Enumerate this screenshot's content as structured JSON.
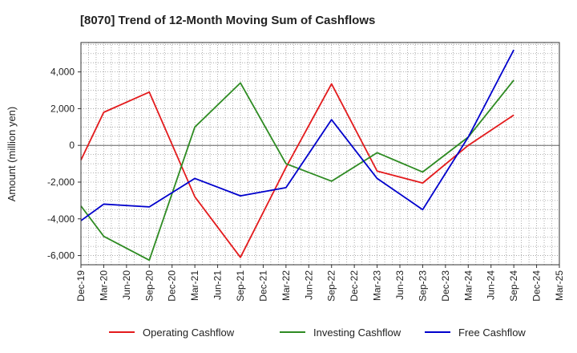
{
  "chart_data": {
    "type": "line",
    "title": "[8070]  Trend of 12-Month Moving Sum of Cashflows",
    "ylabel": "Amount (million yen)",
    "xlabel": "",
    "ylim": [
      -6500,
      5600
    ],
    "yticks": [
      -6000,
      -4000,
      -2000,
      0,
      2000,
      4000
    ],
    "ytick_labels": [
      "-6,000",
      "-4,000",
      "-2,000",
      "0",
      "2,000",
      "4,000"
    ],
    "categories": [
      "Dec-19",
      "Mar-20",
      "Jun-20",
      "Sep-20",
      "Dec-20",
      "Mar-21",
      "Jun-21",
      "Sep-21",
      "Dec-21",
      "Mar-22",
      "Jun-22",
      "Sep-22",
      "Dec-22",
      "Mar-23",
      "Jun-23",
      "Sep-23",
      "Dec-23",
      "Mar-24",
      "Jun-24",
      "Sep-24",
      "Dec-24",
      "Mar-25"
    ],
    "grid": true,
    "legend_position": "bottom",
    "series": [
      {
        "name": "Operating Cashflow",
        "color": "#e31a1c",
        "points": [
          [
            "Dec-19",
            -800
          ],
          [
            "Mar-20",
            1800
          ],
          [
            "Sep-20",
            2900
          ],
          [
            "Mar-21",
            -2800
          ],
          [
            "Sep-21",
            -6100
          ],
          [
            "Mar-22",
            -1200
          ],
          [
            "Sep-22",
            3350
          ],
          [
            "Mar-23",
            -1400
          ],
          [
            "Sep-23",
            -2050
          ],
          [
            "Mar-24",
            0
          ],
          [
            "Sep-24",
            1650
          ]
        ]
      },
      {
        "name": "Investing Cashflow",
        "color": "#2e8b22",
        "points": [
          [
            "Dec-19",
            -3300
          ],
          [
            "Mar-20",
            -4950
          ],
          [
            "Sep-20",
            -6250
          ],
          [
            "Mar-21",
            1000
          ],
          [
            "Sep-21",
            3400
          ],
          [
            "Mar-22",
            -1000
          ],
          [
            "Sep-22",
            -1950
          ],
          [
            "Mar-23",
            -400
          ],
          [
            "Sep-23",
            -1450
          ],
          [
            "Mar-24",
            450
          ],
          [
            "Sep-24",
            3550
          ]
        ]
      },
      {
        "name": "Free Cashflow",
        "color": "#0000cc",
        "points": [
          [
            "Dec-19",
            -4100
          ],
          [
            "Mar-20",
            -3200
          ],
          [
            "Sep-20",
            -3350
          ],
          [
            "Mar-21",
            -1800
          ],
          [
            "Sep-21",
            -2750
          ],
          [
            "Mar-22",
            -2300
          ],
          [
            "Sep-22",
            1400
          ],
          [
            "Mar-23",
            -1800
          ],
          [
            "Sep-23",
            -3500
          ],
          [
            "Mar-24",
            450
          ],
          [
            "Sep-24",
            5200
          ]
        ]
      }
    ]
  }
}
